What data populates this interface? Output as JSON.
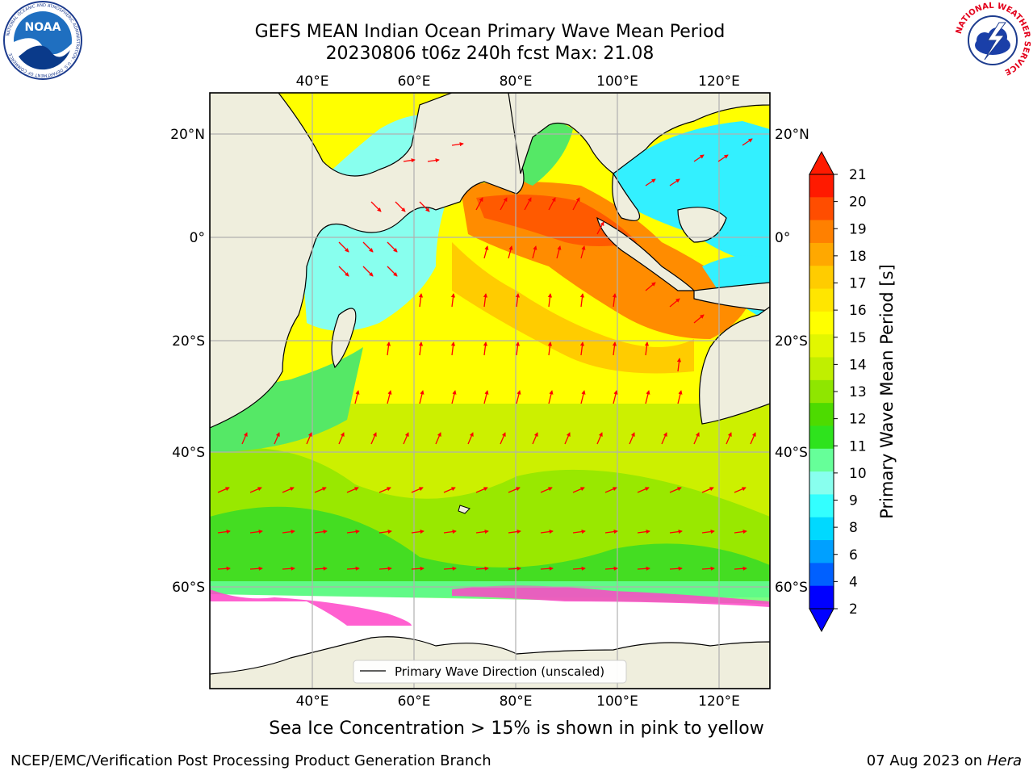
{
  "title": {
    "line1": "GEFS MEAN Indian Ocean Primary Wave Mean Period",
    "line2": "20230806 t06z 240h fcst   Max: 21.08"
  },
  "map": {
    "lon_ticks_top": [
      "40°E",
      "60°E",
      "80°E",
      "100°E",
      "120°E"
    ],
    "lon_ticks_bottom": [
      "40°E",
      "60°E",
      "80°E",
      "100°E",
      "120°E"
    ],
    "lat_ticks_left": [
      "20°N",
      "0°",
      "20°S",
      "40°S",
      "60°S"
    ],
    "lat_ticks_right": [
      "20°N",
      "0°",
      "20°S",
      "40°S",
      "60°S"
    ],
    "legend_label": "Primary Wave Direction (unscaled)",
    "colors": {
      "land": "#efeedd",
      "arrow": "#ff0000",
      "grid": "#b0b0b0",
      "ice": "#ff44c8"
    }
  },
  "colorbar": {
    "label": "Primary Wave Mean Period [s]",
    "ticks": [
      "21",
      "20",
      "19",
      "18",
      "17",
      "16",
      "15",
      "14",
      "13",
      "12",
      "11",
      "10",
      "9",
      "8",
      "6",
      "4",
      "2"
    ],
    "colors": [
      "#ff1a00",
      "#ff4d00",
      "#ff8000",
      "#ffa800",
      "#ffcc00",
      "#ffe600",
      "#ffff00",
      "#e2f700",
      "#c0ef00",
      "#8fe600",
      "#4ddb00",
      "#2ee31d",
      "#66ff99",
      "#88ffee",
      "#33ffff",
      "#00d9ff",
      "#00a0ff",
      "#0060ff",
      "#0000ff"
    ],
    "over_color": "#ff1a00",
    "under_color": "#0000ff"
  },
  "bottom_note": "Sea Ice Concentration > 15% is shown in pink to yellow",
  "footer": {
    "left": "NCEP/EMC/Verification Post Processing Product Generation Branch",
    "date": "07 Aug 2023 on",
    "machine": "Hera"
  },
  "logos": {
    "left": "NOAA",
    "left_ring": "NATIONAL OCEANIC AND ATMOSPHERIC ADMINISTRATION · U.S. DEPARTMENT OF COMMERCE",
    "right_ring": "NATIONAL WEATHER SERVICE"
  }
}
